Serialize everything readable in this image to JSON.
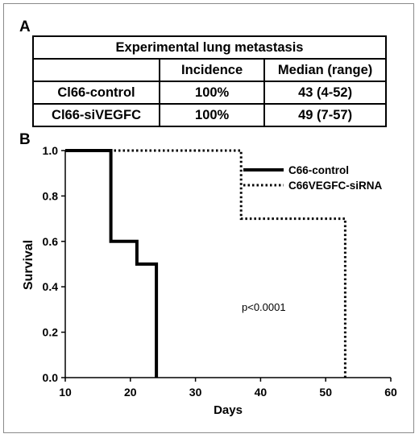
{
  "panel_a": {
    "label": "A",
    "table": {
      "title": "Experimental lung metastasis",
      "headers": [
        "",
        "Incidence",
        "Median (range)"
      ],
      "rows": [
        [
          "Cl66-control",
          "100%",
          "43 (4-52)"
        ],
        [
          "Cl66-siVEGFC",
          "100%",
          "49 (7-57)"
        ]
      ]
    }
  },
  "panel_b": {
    "label": "B"
  },
  "chart_data": {
    "type": "line",
    "subtype": "kaplan-meier step",
    "xlabel": "Days",
    "ylabel": "Survival",
    "xlim": [
      10,
      60
    ],
    "ylim": [
      0,
      1
    ],
    "xticks": [
      "10",
      "20",
      "30",
      "40",
      "50",
      "60"
    ],
    "yticks": [
      "0.0",
      "0.2",
      "0.4",
      "0.6",
      "0.8",
      "1.0"
    ],
    "annotation": "p<0.0001",
    "legend_position": "top-right",
    "grid": false,
    "series": [
      {
        "name": "C66-control",
        "style": "solid",
        "color": "#000000",
        "x": [
          10,
          17,
          17,
          21,
          21,
          24,
          24
        ],
        "y": [
          1.0,
          1.0,
          0.6,
          0.6,
          0.5,
          0.5,
          0.0
        ]
      },
      {
        "name": "C66VEGFC-siRNA",
        "style": "dotted",
        "color": "#000000",
        "x": [
          10,
          37,
          37,
          53,
          53
        ],
        "y": [
          1.0,
          1.0,
          0.7,
          0.7,
          0.0
        ]
      }
    ]
  }
}
